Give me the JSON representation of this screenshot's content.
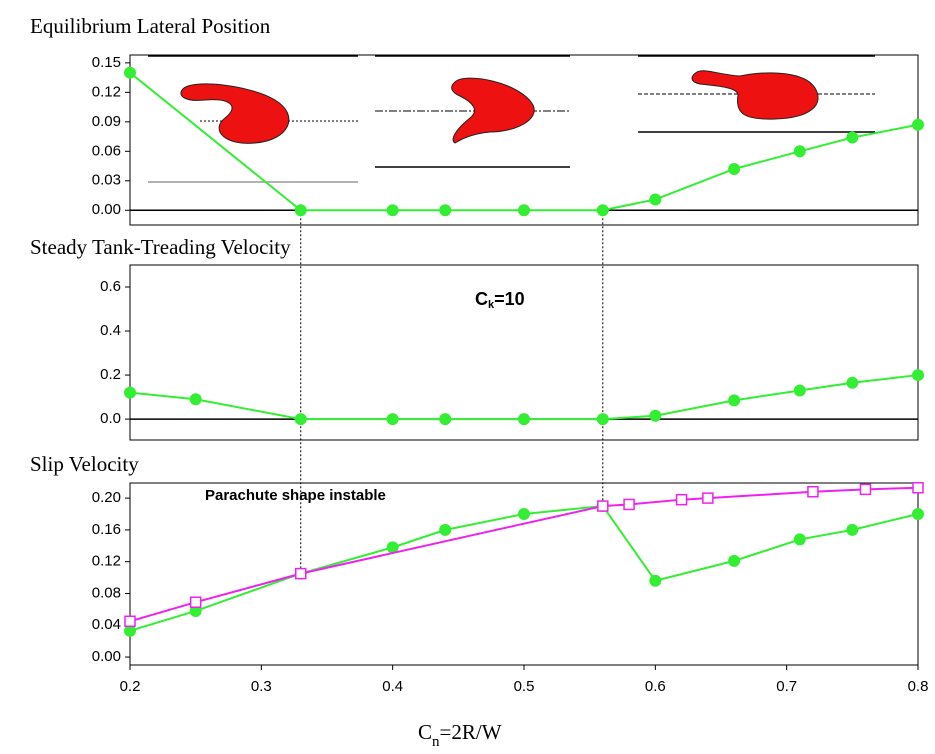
{
  "chart_data": [
    {
      "type": "line",
      "title": "Equilibrium Lateral Position",
      "xlim": [
        0.2,
        0.8
      ],
      "ylim": [
        -0.015,
        0.158
      ],
      "yticks": [
        {
          "value": 0,
          "label": "0.00"
        },
        0.03,
        0.06,
        0.09,
        0.12,
        0.15
      ],
      "zero_line": true,
      "guides": [
        0.33,
        0.56
      ],
      "series": [
        {
          "color": "#33ee33",
          "marker": "circle",
          "x": [
            0.2,
            0.33,
            0.4,
            0.44,
            0.5,
            0.56,
            0.6,
            0.66,
            0.71,
            0.75,
            0.8
          ],
          "values": [
            0.14,
            0,
            0,
            0,
            0,
            0,
            0.011,
            0.042,
            0.06,
            0.074,
            0.087
          ]
        }
      ]
    },
    {
      "type": "line",
      "title": "Steady Tank-Treading Velocity",
      "xlim": [
        0.2,
        0.8
      ],
      "ylim": [
        -0.095,
        0.7
      ],
      "yticks": [
        {
          "value": 0,
          "label": "0.0"
        },
        0.2,
        0.4,
        0.6
      ],
      "zero_line": true,
      "annotation": [
        "C",
        "k",
        "=10"
      ],
      "annotation_color": "#33ee33",
      "series": [
        {
          "color": "#33ee33",
          "marker": "circle",
          "x": [
            0.2,
            0.25,
            0.33,
            0.4,
            0.44,
            0.5,
            0.56,
            0.6,
            0.66,
            0.71,
            0.75,
            0.8
          ],
          "values": [
            0.12,
            0.09,
            0,
            0,
            0,
            0,
            0,
            0.015,
            0.085,
            0.13,
            0.165,
            0.2
          ]
        }
      ]
    },
    {
      "type": "line",
      "title": "Slip Velocity",
      "xlim": [
        0.2,
        0.8
      ],
      "ylim": [
        -0.01,
        0.219
      ],
      "xticks": [
        0.2,
        0.3,
        0.4,
        0.5,
        0.6,
        0.7,
        0.8
      ],
      "yticks": [
        {
          "value": 0,
          "label": "0.00"
        },
        0.04,
        0.08,
        0.12,
        0.16,
        {
          "value": 0.2,
          "label": "0.20"
        }
      ],
      "xlabel": [
        "C",
        "n",
        "=2R/W"
      ],
      "annotation": "Parachute shape instable",
      "series": [
        {
          "color": "#33ee33",
          "marker": "circle",
          "x": [
            0.2,
            0.25,
            0.33,
            0.4,
            0.44,
            0.5,
            0.56,
            0.6,
            0.66,
            0.71,
            0.75,
            0.8
          ],
          "values": [
            0.033,
            0.058,
            0.105,
            0.138,
            0.16,
            0.18,
            0.19,
            0.096,
            0.121,
            0.148,
            0.16,
            0.18
          ]
        },
        {
          "color": "#ee22ee",
          "marker": "square",
          "x": [
            0.2,
            0.25,
            0.33,
            0.56,
            0.58,
            0.62,
            0.64,
            0.72,
            0.76,
            0.8
          ],
          "values": [
            0.045,
            0.069,
            0.105,
            0.19,
            0.192,
            0.198,
            0.2,
            0.208,
            0.211,
            0.213
          ]
        }
      ]
    }
  ]
}
